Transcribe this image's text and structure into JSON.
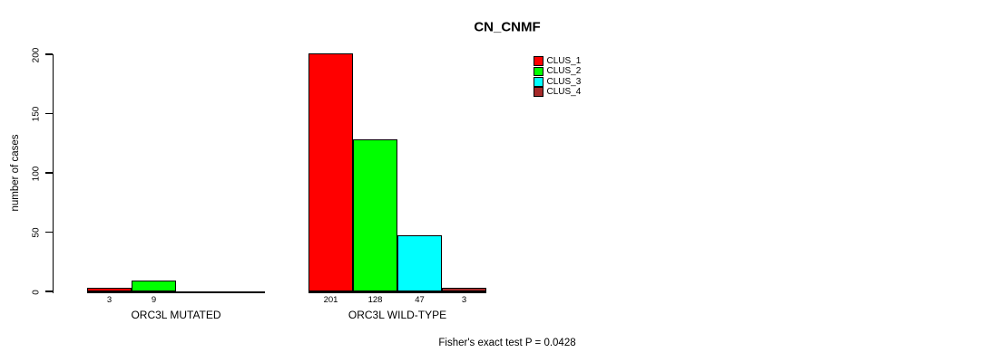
{
  "title": "CN_CNMF",
  "annotation": "Fisher's exact test P = 0.0428",
  "y_axis": {
    "label": "number of cases",
    "tick_labels": [
      "0",
      "50",
      "100",
      "150",
      "200"
    ]
  },
  "legend": {
    "entries": [
      "CLUS_1",
      "CLUS_2",
      "CLUS_3",
      "CLUS_4"
    ],
    "colors": [
      "#ff0000",
      "#00ff00",
      "#00ffff",
      "#a52a2a"
    ]
  },
  "chart_data": {
    "type": "bar",
    "title": "CN_CNMF",
    "xlabel": "",
    "ylabel": "number of cases",
    "categories": [
      "ORC3L MUTATED",
      "ORC3L WILD-TYPE"
    ],
    "series": [
      {
        "name": "CLUS_1",
        "color": "#ff0000",
        "values": [
          3,
          201
        ]
      },
      {
        "name": "CLUS_2",
        "color": "#00ff00",
        "values": [
          9,
          128
        ]
      },
      {
        "name": "CLUS_3",
        "color": "#00ffff",
        "values": [
          0,
          47
        ]
      },
      {
        "name": "CLUS_4",
        "color": "#a52a2a",
        "values": [
          0,
          3
        ]
      }
    ],
    "bar_value_labels": [
      [
        "3",
        "9",
        "",
        ""
      ],
      [
        "201",
        "128",
        "47",
        "3"
      ]
    ],
    "ylim": [
      0,
      200
    ],
    "yticks": [
      0,
      50,
      100,
      150,
      200
    ],
    "grid": false,
    "legend_position": "top-right",
    "annotation": "Fisher's exact test P = 0.0428"
  }
}
